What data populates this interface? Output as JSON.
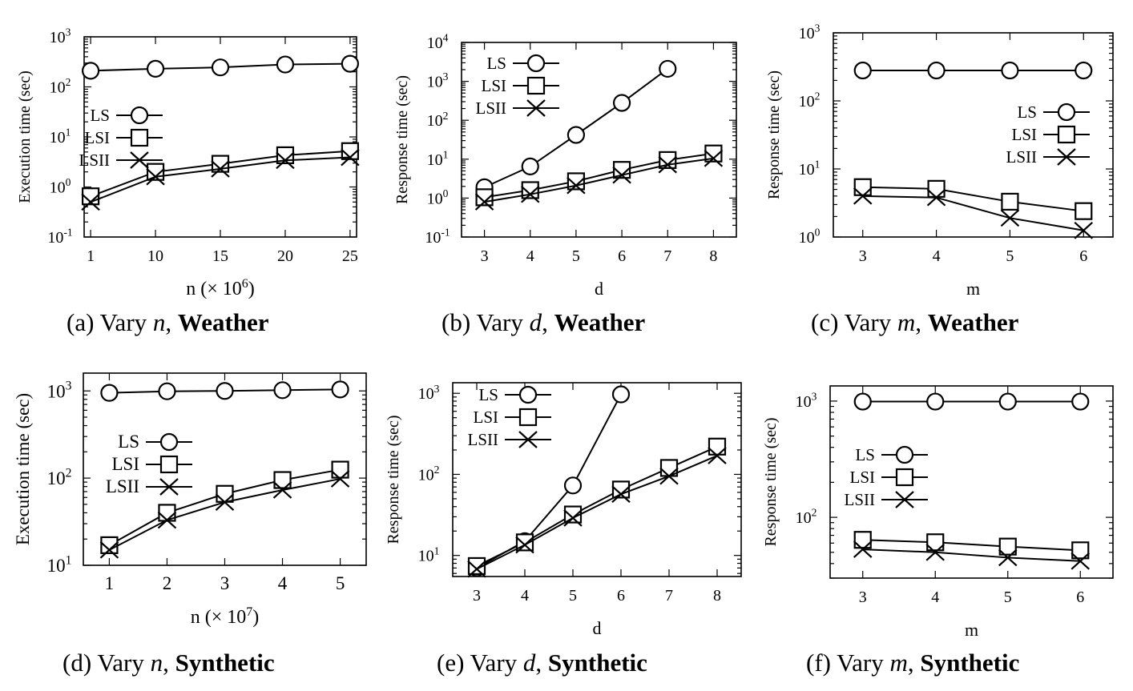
{
  "chart_data": [
    {
      "type": "line",
      "scale_y": "log",
      "ylabel": "Execution time (sec)",
      "xlabel_base": "n (× 10",
      "xlabel_exp": "6",
      "xlabel_tail": ")",
      "x_ticks": [
        "1",
        "10",
        "15",
        "20",
        "25"
      ],
      "y_ticks": [
        {
          "base": "10",
          "exp": "-1"
        },
        {
          "base": "10",
          "exp": "0"
        },
        {
          "base": "10",
          "exp": "1"
        },
        {
          "base": "10",
          "exp": "2"
        },
        {
          "base": "10",
          "exp": "3"
        }
      ],
      "ylim": [
        0.1,
        1000
      ],
      "legend_position": "left-middle",
      "series": [
        {
          "name": "LS",
          "marker": "circle",
          "values": [
            210,
            230,
            245,
            280,
            290
          ]
        },
        {
          "name": "LSI",
          "marker": "square",
          "values": [
            0.65,
            2.0,
            2.9,
            4.3,
            5.2
          ]
        },
        {
          "name": "LSII",
          "marker": "x",
          "values": [
            0.5,
            1.6,
            2.3,
            3.4,
            3.9
          ]
        }
      ],
      "caption": {
        "label": "(a)",
        "prefix": "Vary",
        "var": "n",
        "dataset": "Weather"
      }
    },
    {
      "type": "line",
      "scale_y": "log",
      "ylabel": "Response time (sec)",
      "xlabel_base": "d",
      "xlabel_exp": "",
      "xlabel_tail": "",
      "x_ticks": [
        "3",
        "4",
        "5",
        "6",
        "7",
        "8"
      ],
      "y_ticks": [
        {
          "base": "10",
          "exp": "-1"
        },
        {
          "base": "10",
          "exp": "0"
        },
        {
          "base": "10",
          "exp": "1"
        },
        {
          "base": "10",
          "exp": "2"
        },
        {
          "base": "10",
          "exp": "3"
        },
        {
          "base": "10",
          "exp": "4"
        }
      ],
      "ylim": [
        0.1,
        10000
      ],
      "legend_position": "top-left",
      "series": [
        {
          "name": "LS",
          "marker": "circle",
          "values": [
            1.9,
            6.5,
            42,
            280,
            2100,
            null
          ]
        },
        {
          "name": "LSI",
          "marker": "square",
          "values": [
            1.05,
            1.6,
            2.7,
            5.3,
            9.5,
            14
          ]
        },
        {
          "name": "LSII",
          "marker": "x",
          "values": [
            0.8,
            1.25,
            2.1,
            3.9,
            7.2,
            10.5
          ]
        }
      ],
      "caption": {
        "label": "(b)",
        "prefix": "Vary",
        "var": "d",
        "dataset": "Weather"
      }
    },
    {
      "type": "line",
      "scale_y": "log",
      "ylabel": "Response time (sec)",
      "xlabel_base": "m",
      "xlabel_exp": "",
      "xlabel_tail": "",
      "x_ticks": [
        "3",
        "4",
        "5",
        "6"
      ],
      "y_ticks": [
        {
          "base": "10",
          "exp": "0"
        },
        {
          "base": "10",
          "exp": "1"
        },
        {
          "base": "10",
          "exp": "2"
        },
        {
          "base": "10",
          "exp": "3"
        }
      ],
      "ylim": [
        1,
        1000
      ],
      "legend_position": "right-middle",
      "series": [
        {
          "name": "LS",
          "marker": "circle",
          "values": [
            280,
            280,
            280,
            280
          ]
        },
        {
          "name": "LSI",
          "marker": "square",
          "values": [
            5.4,
            5.1,
            3.3,
            2.4
          ]
        },
        {
          "name": "LSII",
          "marker": "x",
          "values": [
            4.0,
            3.8,
            1.9,
            1.25
          ]
        }
      ],
      "caption": {
        "label": "(c)",
        "prefix": "Vary",
        "var": "m",
        "dataset": "Weather"
      }
    },
    {
      "type": "line",
      "scale_y": "log",
      "ylabel": "Execution time (sec)",
      "xlabel_base": "n (× 10",
      "xlabel_exp": "7",
      "xlabel_tail": ")",
      "x_ticks": [
        "1",
        "2",
        "3",
        "4",
        "5"
      ],
      "y_ticks": [
        {
          "base": "10",
          "exp": "1"
        },
        {
          "base": "10",
          "exp": "2"
        },
        {
          "base": "10",
          "exp": "3"
        }
      ],
      "ylim": [
        10,
        1600
      ],
      "legend_position": "left-middle",
      "series": [
        {
          "name": "LS",
          "marker": "circle",
          "values": [
            950,
            990,
            1000,
            1020,
            1040
          ]
        },
        {
          "name": "LSI",
          "marker": "square",
          "values": [
            17,
            40,
            66,
            95,
            125
          ]
        },
        {
          "name": "LSII",
          "marker": "x",
          "values": [
            15,
            33,
            53,
            73,
            98
          ]
        }
      ],
      "caption": {
        "label": "(d)",
        "prefix": "Vary",
        "var": "n",
        "dataset": "Synthetic"
      }
    },
    {
      "type": "line",
      "scale_y": "log",
      "ylabel": "Response time (sec)",
      "xlabel_base": "d",
      "xlabel_exp": "",
      "xlabel_tail": "",
      "x_ticks": [
        "3",
        "4",
        "5",
        "6",
        "7",
        "8"
      ],
      "y_ticks": [
        {
          "base": "10",
          "exp": "1"
        },
        {
          "base": "10",
          "exp": "2"
        },
        {
          "base": "10",
          "exp": "3"
        }
      ],
      "ylim": [
        5.5,
        1350
      ],
      "legend_position": "top-left",
      "series": [
        {
          "name": "LS",
          "marker": "circle",
          "values": [
            7.0,
            15,
            73,
            970,
            null,
            null
          ]
        },
        {
          "name": "LSI",
          "marker": "square",
          "values": [
            7.4,
            14.5,
            32,
            65,
            120,
            220
          ]
        },
        {
          "name": "LSII",
          "marker": "x",
          "values": [
            6.8,
            13.5,
            29,
            57,
            95,
            170
          ]
        }
      ],
      "caption": {
        "label": "(e)",
        "prefix": "Vary",
        "var": "d",
        "dataset": "Synthetic"
      }
    },
    {
      "type": "line",
      "scale_y": "log",
      "ylabel": "Response time (sec)",
      "xlabel_base": "m",
      "xlabel_exp": "",
      "xlabel_tail": "",
      "x_ticks": [
        "3",
        "4",
        "5",
        "6"
      ],
      "y_ticks": [
        {
          "base": "10",
          "exp": "2"
        },
        {
          "base": "10",
          "exp": "3"
        }
      ],
      "ylim": [
        30,
        1350
      ],
      "legend_position": "left-middle",
      "series": [
        {
          "name": "LS",
          "marker": "circle",
          "values": [
            990,
            990,
            990,
            990
          ]
        },
        {
          "name": "LSI",
          "marker": "square",
          "values": [
            64,
            61,
            56,
            52
          ]
        },
        {
          "name": "LSII",
          "marker": "x",
          "values": [
            53,
            50,
            45,
            42
          ]
        }
      ],
      "caption": {
        "label": "(f)",
        "prefix": "Vary",
        "var": "m",
        "dataset": "Synthetic"
      }
    }
  ]
}
